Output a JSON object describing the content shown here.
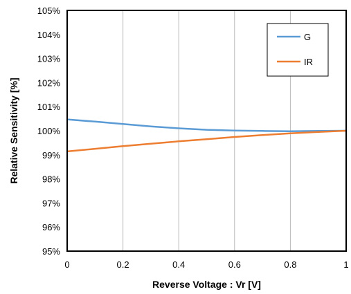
{
  "chart_data": {
    "type": "line",
    "xlabel": "Reverse Voltage : Vr [V]",
    "ylabel": "Relative Sensitivity [%]",
    "xlim": [
      0,
      1
    ],
    "ylim": [
      95,
      105
    ],
    "x_ticks": [
      0,
      0.2,
      0.4,
      0.6,
      0.8,
      1
    ],
    "x_tick_labels": [
      "0",
      "0.2",
      "0.4",
      "0.6",
      "0.8",
      "1"
    ],
    "y_ticks": [
      95,
      96,
      97,
      98,
      99,
      100,
      101,
      102,
      103,
      104,
      105
    ],
    "y_tick_labels": [
      "95%",
      "96%",
      "97%",
      "98%",
      "99%",
      "100%",
      "101%",
      "102%",
      "103%",
      "104%",
      "105%"
    ],
    "grid": "vertical",
    "legend_position": "top-right",
    "series": [
      {
        "name": "G",
        "color": "#5B9BD5",
        "x": [
          0,
          0.1,
          0.2,
          0.3,
          0.4,
          0.5,
          0.6,
          0.7,
          0.8,
          0.9,
          1.0
        ],
        "values": [
          100.47,
          100.38,
          100.28,
          100.18,
          100.1,
          100.04,
          100.01,
          99.99,
          99.98,
          99.99,
          100.0
        ]
      },
      {
        "name": "IR",
        "color": "#ED7D31",
        "x": [
          0,
          0.1,
          0.2,
          0.3,
          0.4,
          0.5,
          0.6,
          0.7,
          0.8,
          0.9,
          1.0
        ],
        "values": [
          99.14,
          99.25,
          99.36,
          99.46,
          99.56,
          99.65,
          99.74,
          99.82,
          99.89,
          99.95,
          100.0
        ]
      }
    ]
  }
}
